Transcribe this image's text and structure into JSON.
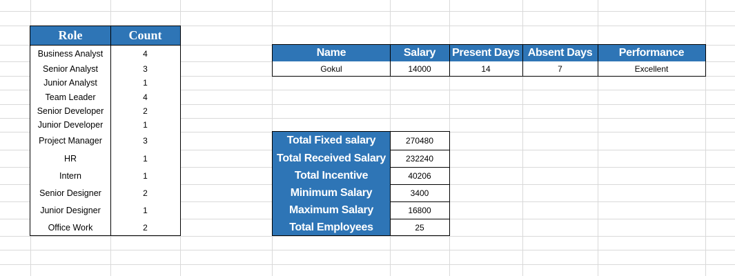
{
  "role_table": {
    "headers": {
      "role": "Role",
      "count": "Count"
    },
    "rows": [
      {
        "role": "Business Analyst",
        "count": "4"
      },
      {
        "role": "Senior Analyst",
        "count": "3"
      },
      {
        "role": "Junior Analyst",
        "count": "1"
      },
      {
        "role": "Team Leader",
        "count": "4"
      },
      {
        "role": "Senior Developer",
        "count": "2"
      },
      {
        "role": "Junior Developer",
        "count": "1"
      },
      {
        "role": "Project Manager",
        "count": "3"
      },
      {
        "role": "HR",
        "count": "1"
      },
      {
        "role": "Intern",
        "count": "1"
      },
      {
        "role": "Senior Designer",
        "count": "2"
      },
      {
        "role": "Junior Designer",
        "count": "1"
      },
      {
        "role": "Office Work",
        "count": "2"
      }
    ]
  },
  "employee_table": {
    "headers": {
      "name": "Name",
      "salary": "Salary",
      "present_days": "Present Days",
      "absent_days": "Absent Days",
      "performance": "Performance"
    },
    "row": {
      "name": "Gokul",
      "salary": "14000",
      "present_days": "14",
      "absent_days": "7",
      "performance": "Excellent"
    }
  },
  "summary_table": {
    "rows": [
      {
        "label": "Total Fixed salary",
        "value": "270480"
      },
      {
        "label": "Total Received Salary",
        "value": "232240"
      },
      {
        "label": "Total Incentive",
        "value": "40206"
      },
      {
        "label": "Minimum Salary",
        "value": "3400"
      },
      {
        "label": "Maximum Salary",
        "value": "16800"
      },
      {
        "label": "Total Employees",
        "value": "25"
      }
    ]
  },
  "colors": {
    "header_fill": "#2e75b6",
    "header_text": "#ffffff",
    "gridline": "#d9d9d9"
  }
}
